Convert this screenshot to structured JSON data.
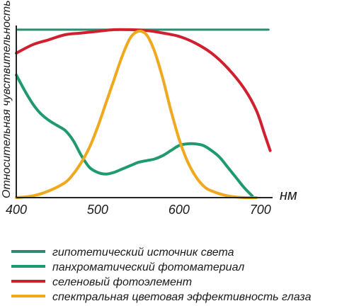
{
  "chart_data": {
    "type": "line",
    "xlabel": "нм",
    "ylabel": "Относительная чувствительность",
    "xlim": [
      400,
      715
    ],
    "ylim": [
      0,
      105
    ],
    "x_ticks": [
      "400",
      "500",
      "600",
      "700"
    ],
    "grid": false,
    "legend_position": "bottom",
    "series": [
      {
        "name": "гипотетический источник света",
        "color": "#2e8b72",
        "points": [
          [
            402,
            100
          ],
          [
            490,
            100
          ],
          [
            600,
            100
          ],
          [
            710,
            100
          ]
        ]
      },
      {
        "name": "панхроматический фотоматериал",
        "color": "#1f9a6e",
        "points": [
          [
            400,
            73
          ],
          [
            410,
            64
          ],
          [
            420,
            56
          ],
          [
            430,
            50
          ],
          [
            440,
            46
          ],
          [
            450,
            43
          ],
          [
            460,
            40
          ],
          [
            470,
            34
          ],
          [
            480,
            25
          ],
          [
            490,
            18
          ],
          [
            500,
            15
          ],
          [
            510,
            14
          ],
          [
            520,
            15
          ],
          [
            530,
            17
          ],
          [
            540,
            19
          ],
          [
            550,
            21
          ],
          [
            560,
            22
          ],
          [
            570,
            23
          ],
          [
            580,
            25
          ],
          [
            590,
            28
          ],
          [
            600,
            31
          ],
          [
            610,
            32
          ],
          [
            620,
            32
          ],
          [
            630,
            31
          ],
          [
            640,
            28
          ],
          [
            650,
            24
          ],
          [
            660,
            18
          ],
          [
            670,
            12
          ],
          [
            680,
            6
          ],
          [
            690,
            1
          ]
        ]
      },
      {
        "name": "селеновый фотоэлемент",
        "color": "#d0202f",
        "points": [
          [
            400,
            86
          ],
          [
            420,
            91
          ],
          [
            440,
            94
          ],
          [
            460,
            97
          ],
          [
            480,
            98
          ],
          [
            500,
            99
          ],
          [
            520,
            100
          ],
          [
            540,
            100
          ],
          [
            560,
            99.5
          ],
          [
            580,
            98
          ],
          [
            600,
            96
          ],
          [
            620,
            92
          ],
          [
            640,
            86
          ],
          [
            660,
            77
          ],
          [
            680,
            65
          ],
          [
            695,
            52
          ],
          [
            705,
            38
          ],
          [
            712,
            28
          ]
        ]
      },
      {
        "name": "спектральная цветовая эффективность глаза",
        "color": "#f0a81c",
        "points": [
          [
            400,
            0
          ],
          [
            420,
            1
          ],
          [
            440,
            4
          ],
          [
            460,
            9
          ],
          [
            470,
            14
          ],
          [
            480,
            21
          ],
          [
            490,
            30
          ],
          [
            500,
            42
          ],
          [
            510,
            56
          ],
          [
            520,
            70
          ],
          [
            530,
            84
          ],
          [
            540,
            95
          ],
          [
            550,
            99
          ],
          [
            560,
            97
          ],
          [
            570,
            87
          ],
          [
            580,
            71
          ],
          [
            590,
            52
          ],
          [
            600,
            35
          ],
          [
            610,
            22
          ],
          [
            620,
            13
          ],
          [
            630,
            7
          ],
          [
            640,
            4
          ],
          [
            660,
            1
          ],
          [
            680,
            0
          ],
          [
            695,
            0
          ]
        ]
      }
    ]
  }
}
